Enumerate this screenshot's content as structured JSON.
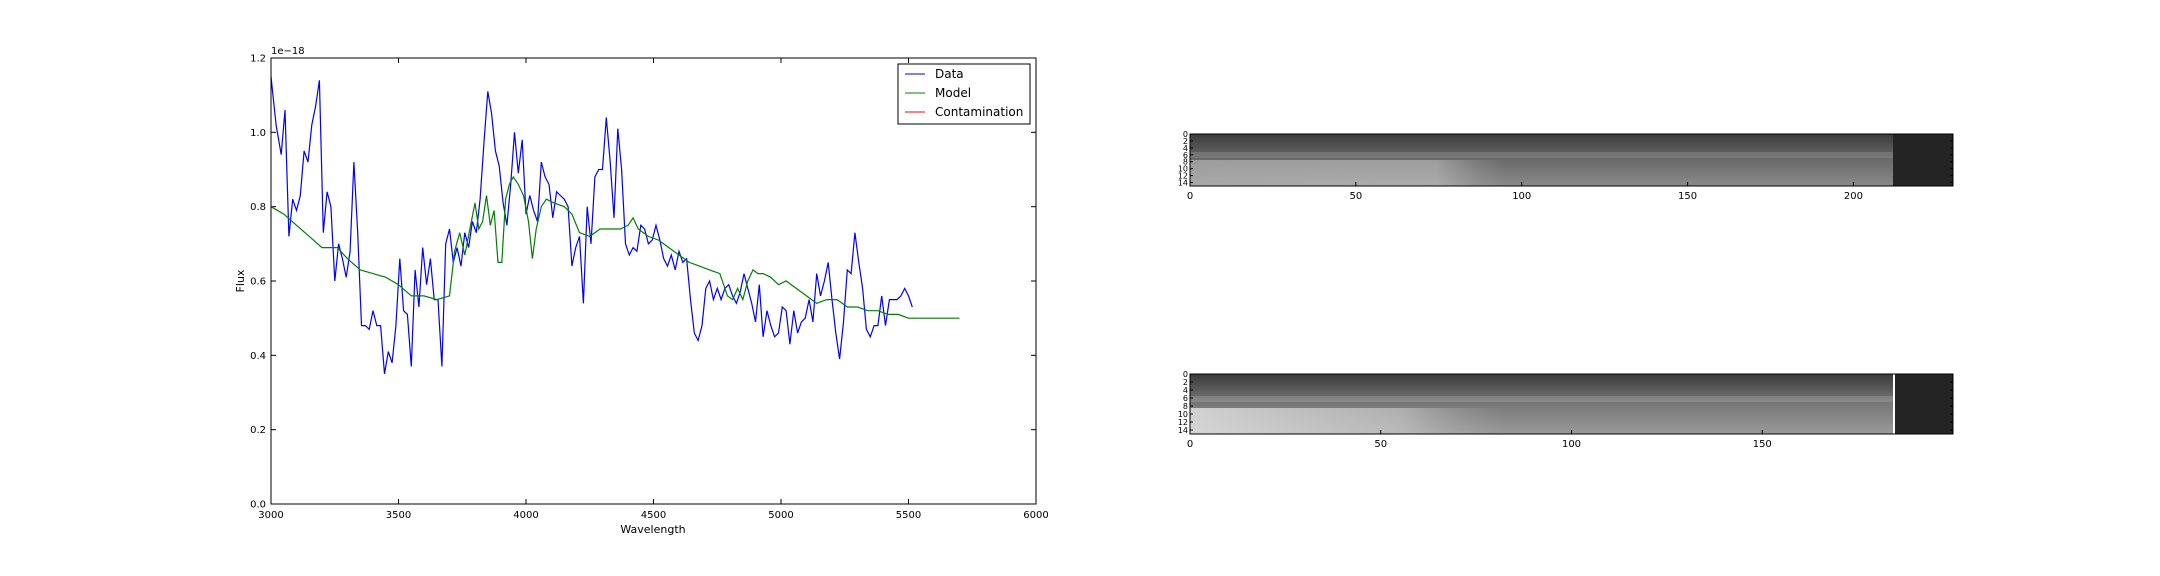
{
  "chart_data": [
    {
      "type": "line",
      "title": "",
      "xlabel": "Wavelength",
      "ylabel": "Flux",
      "offset_text": "1e−18",
      "xlim": [
        3000,
        6000
      ],
      "ylim": [
        0.0,
        1.2
      ],
      "xticks": [
        "3000",
        "3500",
        "4000",
        "4500",
        "5000",
        "5500",
        "6000"
      ],
      "yticks": [
        "0.0",
        "0.2",
        "0.4",
        "0.6",
        "0.8",
        "1.0",
        "1.2"
      ],
      "grid": false,
      "legend_position": "top-right",
      "series": [
        {
          "name": "Data",
          "color": "#0000ff",
          "points": [
            [
              3000,
              1.15
            ],
            [
              3020,
              1.02
            ],
            [
              3040,
              0.94
            ],
            [
              3055,
              1.06
            ],
            [
              3070,
              0.72
            ],
            [
              3085,
              0.82
            ],
            [
              3100,
              0.79
            ],
            [
              3115,
              0.83
            ],
            [
              3130,
              0.95
            ],
            [
              3145,
              0.92
            ],
            [
              3160,
              1.02
            ],
            [
              3175,
              1.07
            ],
            [
              3190,
              1.14
            ],
            [
              3205,
              0.73
            ],
            [
              3220,
              0.84
            ],
            [
              3235,
              0.8
            ],
            [
              3250,
              0.6
            ],
            [
              3265,
              0.7
            ],
            [
              3280,
              0.66
            ],
            [
              3295,
              0.61
            ],
            [
              3310,
              0.68
            ],
            [
              3325,
              0.92
            ],
            [
              3340,
              0.73
            ],
            [
              3355,
              0.48
            ],
            [
              3370,
              0.48
            ],
            [
              3385,
              0.47
            ],
            [
              3400,
              0.52
            ],
            [
              3415,
              0.48
            ],
            [
              3430,
              0.48
            ],
            [
              3445,
              0.35
            ],
            [
              3460,
              0.41
            ],
            [
              3475,
              0.38
            ],
            [
              3490,
              0.48
            ],
            [
              3505,
              0.66
            ],
            [
              3520,
              0.52
            ],
            [
              3535,
              0.51
            ],
            [
              3550,
              0.37
            ],
            [
              3565,
              0.63
            ],
            [
              3580,
              0.53
            ],
            [
              3595,
              0.69
            ],
            [
              3610,
              0.59
            ],
            [
              3625,
              0.66
            ],
            [
              3640,
              0.55
            ],
            [
              3655,
              0.55
            ],
            [
              3670,
              0.37
            ],
            [
              3685,
              0.7
            ],
            [
              3700,
              0.74
            ],
            [
              3715,
              0.65
            ],
            [
              3730,
              0.69
            ],
            [
              3745,
              0.64
            ],
            [
              3760,
              0.73
            ],
            [
              3775,
              0.69
            ],
            [
              3790,
              0.76
            ],
            [
              3805,
              0.73
            ],
            [
              3820,
              0.82
            ],
            [
              3835,
              0.97
            ],
            [
              3850,
              1.11
            ],
            [
              3865,
              1.05
            ],
            [
              3880,
              0.95
            ],
            [
              3895,
              0.91
            ],
            [
              3910,
              0.81
            ],
            [
              3925,
              0.75
            ],
            [
              3940,
              0.86
            ],
            [
              3955,
              1.0
            ],
            [
              3970,
              0.89
            ],
            [
              3985,
              0.98
            ],
            [
              4000,
              0.78
            ],
            [
              4015,
              0.83
            ],
            [
              4030,
              0.79
            ],
            [
              4045,
              0.76
            ],
            [
              4060,
              0.92
            ],
            [
              4075,
              0.88
            ],
            [
              4090,
              0.86
            ],
            [
              4105,
              0.77
            ],
            [
              4120,
              0.84
            ],
            [
              4135,
              0.83
            ],
            [
              4150,
              0.82
            ],
            [
              4165,
              0.8
            ],
            [
              4180,
              0.64
            ],
            [
              4195,
              0.69
            ],
            [
              4210,
              0.72
            ],
            [
              4225,
              0.54
            ],
            [
              4240,
              0.8
            ],
            [
              4255,
              0.7
            ],
            [
              4270,
              0.88
            ],
            [
              4285,
              0.9
            ],
            [
              4300,
              0.9
            ],
            [
              4315,
              1.04
            ],
            [
              4330,
              0.92
            ],
            [
              4345,
              0.77
            ],
            [
              4360,
              1.01
            ],
            [
              4375,
              0.9
            ],
            [
              4390,
              0.7
            ],
            [
              4405,
              0.67
            ],
            [
              4420,
              0.69
            ],
            [
              4435,
              0.68
            ],
            [
              4450,
              0.75
            ],
            [
              4465,
              0.74
            ],
            [
              4480,
              0.7
            ],
            [
              4495,
              0.71
            ],
            [
              4510,
              0.75
            ],
            [
              4525,
              0.71
            ],
            [
              4540,
              0.66
            ],
            [
              4555,
              0.64
            ],
            [
              4570,
              0.67
            ],
            [
              4585,
              0.63
            ],
            [
              4600,
              0.68
            ],
            [
              4615,
              0.65
            ],
            [
              4630,
              0.66
            ],
            [
              4645,
              0.55
            ],
            [
              4660,
              0.46
            ],
            [
              4675,
              0.44
            ],
            [
              4690,
              0.48
            ],
            [
              4705,
              0.58
            ],
            [
              4720,
              0.6
            ],
            [
              4735,
              0.55
            ],
            [
              4750,
              0.58
            ],
            [
              4765,
              0.55
            ],
            [
              4780,
              0.58
            ],
            [
              4795,
              0.59
            ],
            [
              4810,
              0.56
            ],
            [
              4825,
              0.54
            ],
            [
              4840,
              0.57
            ],
            [
              4855,
              0.62
            ],
            [
              4870,
              0.58
            ],
            [
              4885,
              0.54
            ],
            [
              4900,
              0.49
            ],
            [
              4915,
              0.59
            ],
            [
              4930,
              0.45
            ],
            [
              4945,
              0.52
            ],
            [
              4960,
              0.48
            ],
            [
              4975,
              0.45
            ],
            [
              4990,
              0.46
            ],
            [
              5005,
              0.53
            ],
            [
              5020,
              0.52
            ],
            [
              5035,
              0.43
            ],
            [
              5050,
              0.52
            ],
            [
              5065,
              0.46
            ],
            [
              5080,
              0.49
            ],
            [
              5095,
              0.5
            ],
            [
              5110,
              0.55
            ],
            [
              5125,
              0.49
            ],
            [
              5140,
              0.62
            ],
            [
              5155,
              0.56
            ],
            [
              5170,
              0.6
            ],
            [
              5185,
              0.65
            ],
            [
              5200,
              0.55
            ],
            [
              5215,
              0.46
            ],
            [
              5230,
              0.39
            ],
            [
              5245,
              0.49
            ],
            [
              5260,
              0.63
            ],
            [
              5275,
              0.62
            ],
            [
              5290,
              0.73
            ],
            [
              5305,
              0.65
            ],
            [
              5320,
              0.58
            ],
            [
              5335,
              0.47
            ],
            [
              5350,
              0.45
            ],
            [
              5365,
              0.48
            ],
            [
              5380,
              0.48
            ],
            [
              5395,
              0.56
            ],
            [
              5410,
              0.48
            ],
            [
              5425,
              0.55
            ],
            [
              5440,
              0.55
            ],
            [
              5455,
              0.55
            ],
            [
              5470,
              0.56
            ],
            [
              5485,
              0.58
            ],
            [
              5500,
              0.56
            ],
            [
              5515,
              0.53
            ]
          ]
        },
        {
          "name": "Model",
          "color": "#008000",
          "points": [
            [
              3000,
              0.8
            ],
            [
              3050,
              0.78
            ],
            [
              3100,
              0.75
            ],
            [
              3150,
              0.72
            ],
            [
              3200,
              0.69
            ],
            [
              3230,
              0.69
            ],
            [
              3260,
              0.69
            ],
            [
              3300,
              0.66
            ],
            [
              3350,
              0.63
            ],
            [
              3400,
              0.62
            ],
            [
              3450,
              0.61
            ],
            [
              3500,
              0.59
            ],
            [
              3550,
              0.56
            ],
            [
              3600,
              0.56
            ],
            [
              3650,
              0.55
            ],
            [
              3700,
              0.56
            ],
            [
              3720,
              0.68
            ],
            [
              3740,
              0.73
            ],
            [
              3760,
              0.67
            ],
            [
              3780,
              0.74
            ],
            [
              3800,
              0.81
            ],
            [
              3815,
              0.74
            ],
            [
              3830,
              0.76
            ],
            [
              3845,
              0.83
            ],
            [
              3860,
              0.75
            ],
            [
              3875,
              0.79
            ],
            [
              3890,
              0.65
            ],
            [
              3905,
              0.65
            ],
            [
              3920,
              0.82
            ],
            [
              3935,
              0.86
            ],
            [
              3950,
              0.88
            ],
            [
              3970,
              0.86
            ],
            [
              3990,
              0.83
            ],
            [
              4010,
              0.76
            ],
            [
              4025,
              0.66
            ],
            [
              4040,
              0.74
            ],
            [
              4060,
              0.8
            ],
            [
              4080,
              0.82
            ],
            [
              4110,
              0.81
            ],
            [
              4150,
              0.8
            ],
            [
              4180,
              0.78
            ],
            [
              4210,
              0.73
            ],
            [
              4250,
              0.72
            ],
            [
              4290,
              0.74
            ],
            [
              4330,
              0.74
            ],
            [
              4370,
              0.74
            ],
            [
              4400,
              0.75
            ],
            [
              4420,
              0.77
            ],
            [
              4440,
              0.74
            ],
            [
              4480,
              0.72
            ],
            [
              4520,
              0.71
            ],
            [
              4560,
              0.69
            ],
            [
              4600,
              0.67
            ],
            [
              4640,
              0.65
            ],
            [
              4680,
              0.64
            ],
            [
              4720,
              0.63
            ],
            [
              4760,
              0.62
            ],
            [
              4790,
              0.56
            ],
            [
              4810,
              0.55
            ],
            [
              4830,
              0.58
            ],
            [
              4850,
              0.55
            ],
            [
              4870,
              0.6
            ],
            [
              4890,
              0.63
            ],
            [
              4910,
              0.62
            ],
            [
              4930,
              0.62
            ],
            [
              4960,
              0.61
            ],
            [
              4990,
              0.59
            ],
            [
              5020,
              0.6
            ],
            [
              5060,
              0.58
            ],
            [
              5100,
              0.56
            ],
            [
              5140,
              0.54
            ],
            [
              5180,
              0.55
            ],
            [
              5220,
              0.55
            ],
            [
              5260,
              0.53
            ],
            [
              5300,
              0.53
            ],
            [
              5340,
              0.52
            ],
            [
              5380,
              0.52
            ],
            [
              5420,
              0.51
            ],
            [
              5460,
              0.51
            ],
            [
              5500,
              0.5
            ],
            [
              5540,
              0.5
            ],
            [
              5580,
              0.5
            ],
            [
              5600,
              0.5
            ],
            [
              5640,
              0.5
            ],
            [
              5700,
              0.5
            ]
          ]
        },
        {
          "name": "Contamination",
          "color": "#ff0000",
          "points": []
        }
      ]
    },
    {
      "type": "heatmap",
      "title": "",
      "xticks": [
        "0",
        "50",
        "100",
        "150",
        "200"
      ],
      "yticks": [
        "0",
        "2",
        "4",
        "6",
        "8",
        "10",
        "12",
        "14"
      ],
      "xlim": [
        0,
        230
      ],
      "ylim": [
        0,
        15
      ],
      "colormap": "gray"
    },
    {
      "type": "heatmap",
      "title": "",
      "xticks": [
        "0",
        "50",
        "100",
        "150"
      ],
      "yticks": [
        "0",
        "2",
        "4",
        "6",
        "8",
        "10",
        "12",
        "14"
      ],
      "xlim": [
        0,
        200
      ],
      "ylim": [
        0,
        15
      ],
      "colormap": "gray"
    }
  ]
}
